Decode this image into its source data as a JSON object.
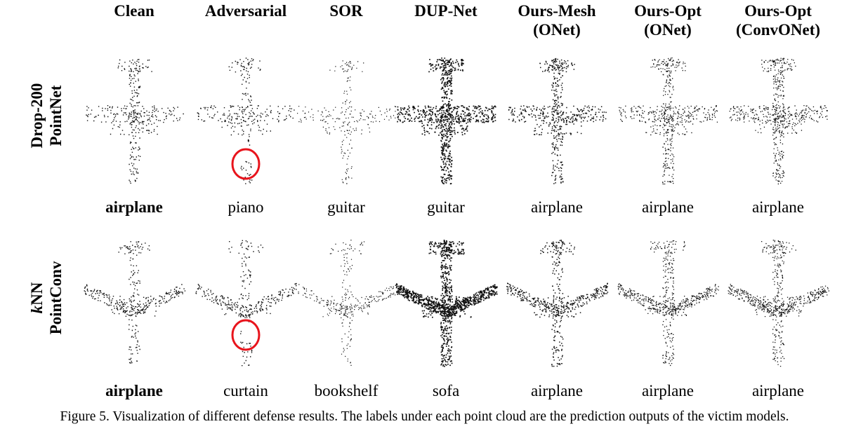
{
  "columns": [
    {
      "line1": "Clean",
      "line2": ""
    },
    {
      "line1": "Adversarial",
      "line2": ""
    },
    {
      "line1": "SOR",
      "line2": ""
    },
    {
      "line1": "DUP-Net",
      "line2": ""
    },
    {
      "line1": "Ours-Mesh",
      "line2": "(ONet)"
    },
    {
      "line1": "Ours-Opt",
      "line2": "(ONet)"
    },
    {
      "line1": "Ours-Opt",
      "line2": "(ConvONet)"
    }
  ],
  "rows": [
    {
      "label_line1": "Drop-200",
      "label_line1_italic": "",
      "label_line2": "PointNet",
      "predictions": [
        "airplane",
        "piano",
        "guitar",
        "guitar",
        "airplane",
        "airplane",
        "airplane"
      ]
    },
    {
      "label_line1": "NN",
      "label_line1_italic": "k",
      "label_line2": "PointConv",
      "predictions": [
        "airplane",
        "curtain",
        "bookshelf",
        "sofa",
        "airplane",
        "airplane",
        "airplane"
      ]
    }
  ],
  "caption": "Figure 5. Visualization of different defense results. The labels under each point cloud are the prediction outputs of the victim models.",
  "colors": {
    "points": "#111111",
    "highlight_circle": "#e8141c"
  }
}
